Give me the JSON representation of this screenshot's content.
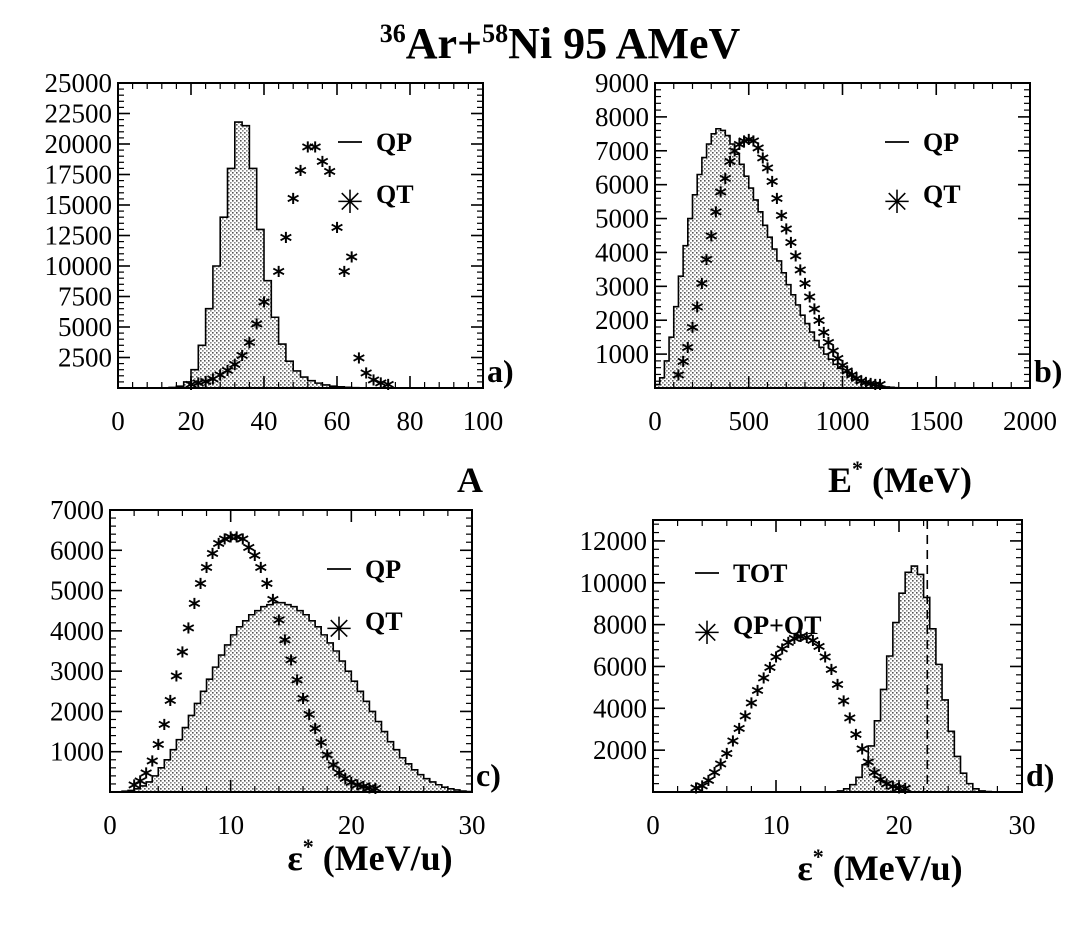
{
  "figure": {
    "title_main": "Ar+",
    "title_sup1": "36",
    "title_sup2": "58",
    "title_rest": "Ni  95 AMeV"
  },
  "chart_data": [
    {
      "type": "histogram",
      "panel_label": "a)",
      "xlabel": "A",
      "xlabel_sup": "",
      "xlabel_unit": "",
      "xlim": [
        0,
        100
      ],
      "ylim": [
        0,
        25000
      ],
      "xticks": [
        "0",
        "20",
        "40",
        "60",
        "80",
        "100"
      ],
      "yticks": [
        "2500",
        "5000",
        "7500",
        "10000",
        "12500",
        "15000",
        "17500",
        "20000",
        "22500",
        "25000"
      ],
      "legend": {
        "placement": "top-right",
        "line_label": "QP",
        "marker_label": "QT"
      },
      "series": [
        {
          "name": "QP",
          "style": "filled-step",
          "x_start": 0,
          "bin_width": 2,
          "values": [
            0,
            0,
            0,
            0,
            0,
            0,
            0,
            50,
            150,
            500,
            1500,
            3500,
            6500,
            10000,
            14000,
            18000,
            21800,
            21500,
            18000,
            13000,
            8800,
            5800,
            3600,
            2200,
            1400,
            900,
            600,
            400,
            250,
            150,
            100,
            60,
            30,
            0,
            0,
            0,
            0,
            0,
            0,
            0,
            0,
            0,
            0,
            0,
            0,
            0,
            0,
            0,
            0,
            0
          ]
        },
        {
          "name": "QT",
          "style": "marker",
          "x": [
            20,
            22,
            24,
            26,
            28,
            30,
            32,
            34,
            36,
            38,
            40,
            44,
            46,
            48,
            50,
            52,
            54,
            56,
            58,
            60,
            62,
            64,
            66,
            68,
            70,
            72,
            74
          ],
          "values": [
            50,
            150,
            300,
            500,
            800,
            1200,
            1700,
            2400,
            3500,
            5000,
            6800,
            9300,
            12100,
            15300,
            17600,
            19500,
            19500,
            18300,
            17500,
            12900,
            9300,
            10500,
            2200,
            1000,
            400,
            150,
            50
          ]
        }
      ]
    },
    {
      "type": "histogram",
      "panel_label": "b)",
      "xlabel": "E",
      "xlabel_sup": "*",
      "xlabel_unit": " (MeV)",
      "xlim": [
        0,
        2000
      ],
      "ylim": [
        0,
        9000
      ],
      "xticks": [
        "0",
        "500",
        "1000",
        "1500",
        "2000"
      ],
      "yticks": [
        "1000",
        "2000",
        "3000",
        "4000",
        "5000",
        "6000",
        "7000",
        "8000",
        "9000"
      ],
      "legend": {
        "placement": "top-right",
        "line_label": "QP",
        "marker_label": "QT"
      },
      "series": [
        {
          "name": "QP",
          "style": "filled-step",
          "x_start": 0,
          "bin_width": 25,
          "values": [
            100,
            300,
            800,
            1500,
            2400,
            3300,
            4200,
            5000,
            5700,
            6300,
            6800,
            7200,
            7500,
            7650,
            7600,
            7450,
            7200,
            6900,
            6600,
            6250,
            5900,
            5550,
            5200,
            4800,
            4450,
            4100,
            3750,
            3400,
            3050,
            2750,
            2450,
            2150,
            1900,
            1650,
            1400,
            1200,
            1000,
            850,
            700,
            580,
            470,
            380,
            300,
            230,
            180,
            140,
            100,
            70,
            50,
            30,
            20,
            10
          ]
        },
        {
          "name": "QT",
          "style": "marker",
          "x": [
            125,
            150,
            175,
            200,
            225,
            250,
            275,
            300,
            325,
            350,
            375,
            400,
            425,
            450,
            475,
            500,
            525,
            550,
            575,
            600,
            625,
            650,
            675,
            700,
            725,
            750,
            775,
            800,
            825,
            850,
            875,
            900,
            925,
            950,
            975,
            1000,
            1025,
            1050,
            1075,
            1100,
            1125,
            1150,
            1175,
            1200
          ],
          "values": [
            300,
            700,
            1100,
            1700,
            2300,
            3000,
            3700,
            4400,
            5100,
            5700,
            6100,
            6600,
            6900,
            7100,
            7200,
            7250,
            7200,
            7000,
            6700,
            6400,
            6000,
            5500,
            5000,
            4600,
            4200,
            3800,
            3400,
            3000,
            2600,
            2250,
            1900,
            1550,
            1250,
            1000,
            780,
            580,
            420,
            290,
            190,
            120,
            70,
            40,
            20,
            10
          ]
        }
      ]
    },
    {
      "type": "histogram",
      "panel_label": "c)",
      "xlabel": "ε",
      "xlabel_sup": "*",
      "xlabel_unit": " (MeV/u)",
      "xlim": [
        0,
        30
      ],
      "ylim": [
        0,
        7000
      ],
      "xticks": [
        "0",
        "10",
        "20",
        "30"
      ],
      "yticks": [
        "1000",
        "2000",
        "3000",
        "4000",
        "5000",
        "6000",
        "7000"
      ],
      "legend": {
        "placement": "top-right",
        "line_label": "QP",
        "marker_label": "QT"
      },
      "series": [
        {
          "name": "QP",
          "style": "filled-step",
          "x_start": 0,
          "bin_width": 0.5,
          "values": [
            0,
            0,
            20,
            40,
            80,
            150,
            250,
            400,
            600,
            800,
            1050,
            1300,
            1600,
            1900,
            2200,
            2500,
            2800,
            3100,
            3400,
            3650,
            3900,
            4100,
            4250,
            4400,
            4500,
            4600,
            4650,
            4700,
            4700,
            4650,
            4600,
            4500,
            4400,
            4250,
            4100,
            3900,
            3700,
            3500,
            3250,
            3000,
            2750,
            2500,
            2250,
            2000,
            1750,
            1500,
            1250,
            1050,
            850,
            700,
            550,
            430,
            330,
            250,
            180,
            120,
            80,
            50,
            25,
            10
          ]
        },
        {
          "name": "QT",
          "style": "marker",
          "x": [
            2,
            2.5,
            3,
            3.5,
            4,
            4.5,
            5,
            5.5,
            6,
            6.5,
            7,
            7.5,
            8,
            8.5,
            9,
            9.5,
            10,
            10.5,
            11,
            11.5,
            12,
            12.5,
            13,
            13.5,
            14,
            14.5,
            15,
            15.5,
            16,
            16.5,
            17,
            17.5,
            18,
            18.5,
            19,
            19.5,
            20,
            20.5,
            21,
            21.5,
            22
          ],
          "values": [
            100,
            200,
            400,
            700,
            1100,
            1600,
            2200,
            2800,
            3400,
            4000,
            4600,
            5100,
            5500,
            5850,
            6100,
            6200,
            6250,
            6250,
            6200,
            6000,
            5800,
            5500,
            5100,
            4700,
            4200,
            3700,
            3200,
            2700,
            2250,
            1850,
            1500,
            1150,
            850,
            600,
            400,
            260,
            160,
            100,
            60,
            30,
            10
          ]
        }
      ]
    },
    {
      "type": "histogram",
      "panel_label": "d)",
      "xlabel": "ε",
      "xlabel_sup": "*",
      "xlabel_unit": " (MeV/u)",
      "xlim": [
        0,
        30
      ],
      "ylim": [
        0,
        13000
      ],
      "xticks": [
        "0",
        "10",
        "20",
        "30"
      ],
      "yticks": [
        "2000",
        "4000",
        "6000",
        "8000",
        "10000",
        "12000"
      ],
      "vline_x": 22.3,
      "legend": {
        "placement": "top-left",
        "line_label": "TOT",
        "marker_label": "QP+QT"
      },
      "series": [
        {
          "name": "TOT",
          "style": "filled-step",
          "x_start": 15,
          "bin_width": 0.5,
          "values": [
            50,
            150,
            350,
            700,
            1300,
            2200,
            3400,
            4900,
            6500,
            8100,
            9500,
            10500,
            10800,
            10400,
            9300,
            7800,
            6100,
            4400,
            2900,
            1700,
            900,
            400,
            150,
            50,
            20,
            0
          ]
        },
        {
          "name": "QP+QT",
          "style": "marker",
          "x": [
            3.5,
            4,
            4.5,
            5,
            5.5,
            6,
            6.5,
            7,
            7.5,
            8,
            8.5,
            9,
            9.5,
            10,
            10.5,
            11,
            11.5,
            12,
            12.5,
            13,
            13.5,
            14,
            14.5,
            15,
            15.5,
            16,
            16.5,
            17,
            17.5,
            18,
            18.5,
            19,
            19.5,
            20,
            20.5
          ],
          "values": [
            50,
            150,
            400,
            800,
            1200,
            1700,
            2300,
            2900,
            3500,
            4100,
            4700,
            5300,
            5800,
            6300,
            6700,
            7000,
            7200,
            7300,
            7250,
            7100,
            6800,
            6300,
            5700,
            5000,
            4200,
            3400,
            2600,
            1900,
            1300,
            800,
            450,
            250,
            120,
            50,
            20
          ]
        }
      ]
    }
  ]
}
